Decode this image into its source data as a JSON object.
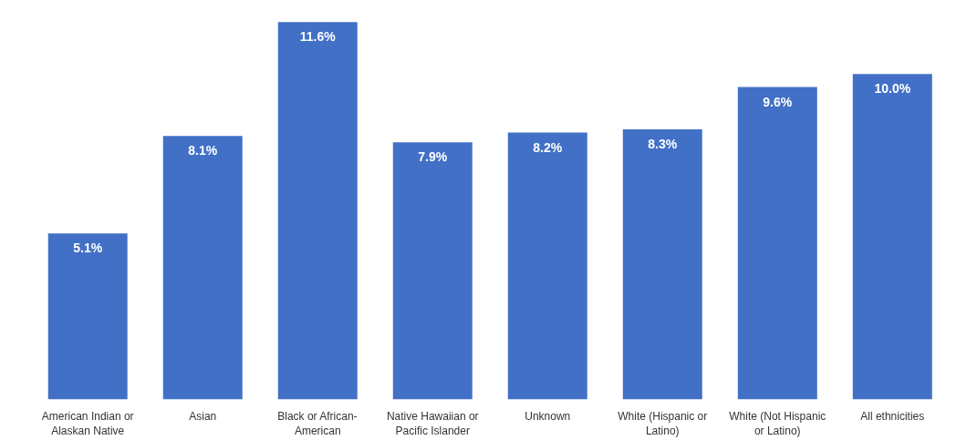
{
  "chart_data": {
    "type": "bar",
    "categories": [
      "American Indian or Alaskan Native",
      "Asian",
      "Black or African-American",
      "Native Hawaiian or Pacific Islander",
      "Unknown",
      "White (Hispanic or Latino)",
      "White (Not Hispanic or Latino)",
      "All ethnicities"
    ],
    "values": [
      5.1,
      8.1,
      11.6,
      7.9,
      8.2,
      8.3,
      9.6,
      10.0
    ],
    "value_labels": [
      "5.1%",
      "8.1%",
      "11.6%",
      "7.9%",
      "8.2%",
      "8.3%",
      "9.6%",
      "10.0%"
    ],
    "color": "#4170c6",
    "grid": false
  }
}
